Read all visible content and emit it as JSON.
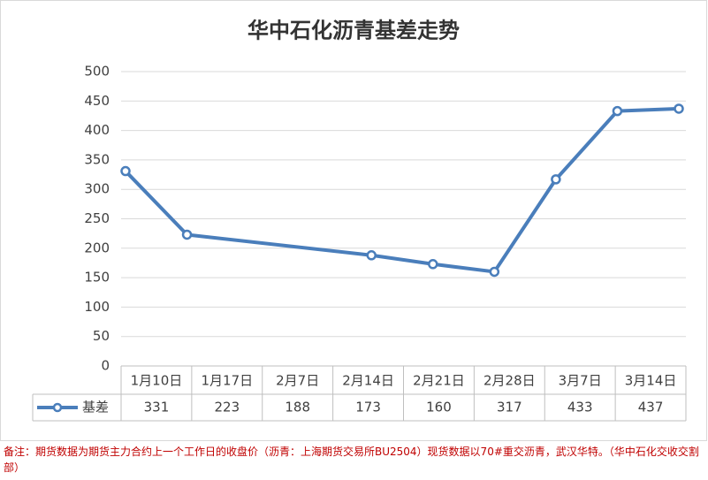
{
  "chart_data": {
    "type": "line",
    "title": "华中石化沥青基差走势",
    "categories": [
      "1月10日",
      "1月17日",
      "2月7日",
      "2月14日",
      "2月21日",
      "2月28日",
      "3月7日",
      "3月14日"
    ],
    "series": [
      {
        "name": "基差",
        "color": "#4a7ebb",
        "values": [
          331,
          223,
          188,
          173,
          160,
          317,
          433,
          437
        ]
      }
    ],
    "ylim": [
      0,
      500
    ],
    "yticks": [
      0,
      50,
      100,
      150,
      200,
      250,
      300,
      350,
      400,
      450,
      500
    ],
    "grid": true,
    "note": "备注：期货数据为期货主力合约上一个工作日的收盘价（沥青：上海期货交易所BU2504）现货数据以70#重交沥青，武汉华特。（华中石化交收交割部）"
  }
}
